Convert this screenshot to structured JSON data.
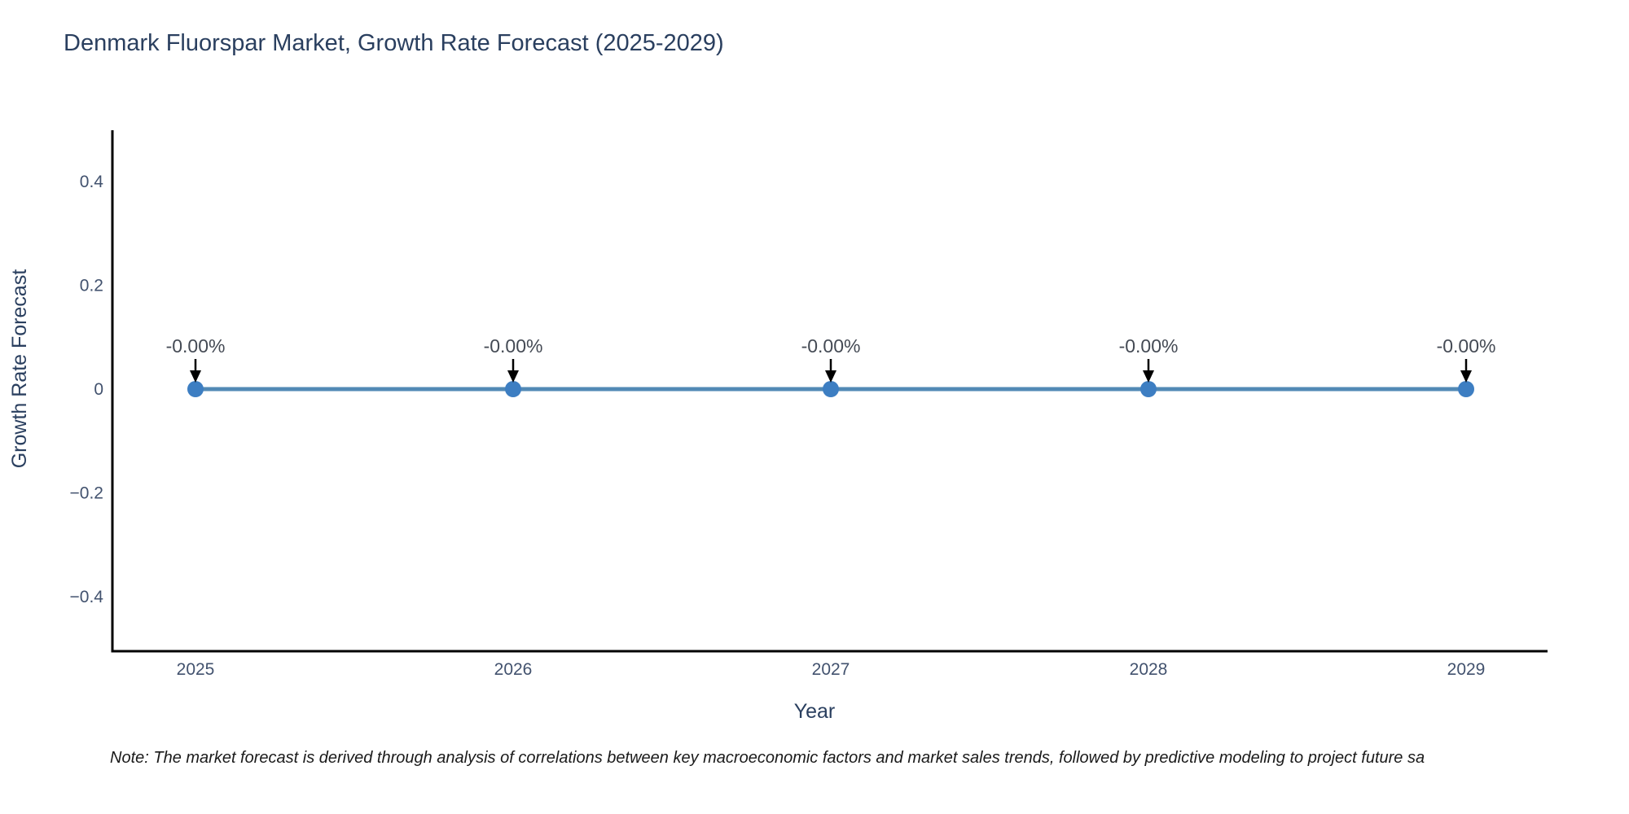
{
  "page": {
    "background": "#ffffff"
  },
  "note": {
    "text": "Note: The market forecast is derived through analysis of correlations between key macroeconomic factors and market sales trends, followed by predictive modeling to project future sa"
  },
  "chart_data": {
    "type": "line",
    "title": "Denmark Fluorspar Market, Growth Rate Forecast (2025-2029)",
    "xlabel": "Year",
    "ylabel": "Growth Rate Forecast",
    "x": [
      2025,
      2026,
      2027,
      2028,
      2029
    ],
    "xticks": [
      "2025",
      "2026",
      "2027",
      "2028",
      "2029"
    ],
    "series": [
      {
        "name": "Growth Rate Forecast",
        "values": [
          0,
          0,
          0,
          0,
          0
        ],
        "point_labels": [
          "-0.00%",
          "-0.00%",
          "-0.00%",
          "-0.00%",
          "-0.00%"
        ]
      }
    ],
    "ylim": [
      -0.5,
      0.5
    ],
    "yticks": [
      "0.4",
      "0.2",
      "0",
      "−0.2",
      "−0.4"
    ],
    "ytick_values": [
      0.4,
      0.2,
      0,
      -0.2,
      -0.4
    ],
    "grid": false,
    "legend_position": "none",
    "colors": {
      "line": "#5289b5",
      "marker": "#3d7ec2",
      "axis": "#000000",
      "title_text": "#2a3f5f",
      "axis_label_text": "#2a3f5f",
      "tick_text": "#42526e",
      "annotation_text": "#444a54",
      "annotation_arrow": "#000000",
      "note_text": "#1a1a1a"
    }
  }
}
